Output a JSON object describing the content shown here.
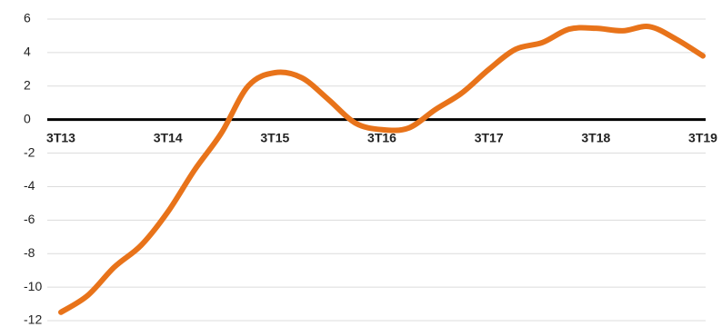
{
  "chart_data": {
    "type": "line",
    "categories": [
      "3T13",
      null,
      null,
      null,
      "3T14",
      null,
      null,
      null,
      "3T15",
      null,
      null,
      null,
      "3T16",
      null,
      null,
      null,
      "3T17",
      null,
      null,
      null,
      "3T18",
      null,
      null,
      null,
      "3T19"
    ],
    "series": [
      {
        "color": "#e8731a",
        "values": [
          -11.5,
          -10.5,
          -8.8,
          -7.5,
          -5.5,
          -3,
          -0.8,
          2,
          2.8,
          2.5,
          1.2,
          -0.2,
          -0.6,
          -0.5,
          0.6,
          1.6,
          3.0,
          4.2,
          4.6,
          5.4,
          5.45,
          5.3,
          5.55,
          4.8,
          3.8
        ]
      }
    ],
    "ylim": [
      -12,
      6
    ],
    "yticks": [
      -12,
      -10,
      -8,
      -6,
      -4,
      -2,
      0,
      2,
      4,
      6
    ],
    "grid": true
  }
}
